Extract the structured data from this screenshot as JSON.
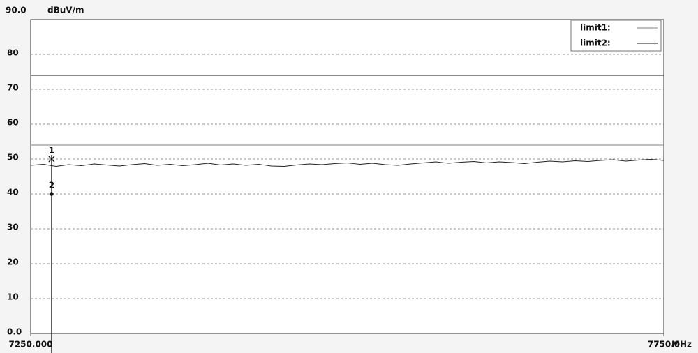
{
  "chart_data": {
    "type": "line",
    "y_unit": "dBuV/m",
    "x_unit": "MHz",
    "ylim": [
      0,
      90
    ],
    "yticks": [
      {
        "value": 0,
        "label": "0.0"
      },
      10,
      20,
      30,
      40,
      50,
      60,
      70,
      80,
      {
        "value": 90,
        "label": "90.0"
      }
    ],
    "xlim": [
      7250,
      7750
    ],
    "xticks": [
      {
        "value": 7250,
        "label": "7250.000"
      },
      {
        "value": 7750,
        "label": "7750.0"
      }
    ],
    "grid": true,
    "trace": {
      "color": "#222222",
      "x": [
        7250,
        7260,
        7270,
        7280,
        7290,
        7300,
        7310,
        7320,
        7330,
        7340,
        7350,
        7360,
        7370,
        7380,
        7390,
        7400,
        7410,
        7420,
        7430,
        7440,
        7450,
        7460,
        7470,
        7480,
        7490,
        7500,
        7510,
        7520,
        7530,
        7540,
        7550,
        7560,
        7570,
        7580,
        7590,
        7600,
        7610,
        7620,
        7630,
        7640,
        7650,
        7660,
        7670,
        7680,
        7690,
        7700,
        7710,
        7720,
        7730,
        7740,
        7750
      ],
      "values": [
        48.2,
        48.5,
        47.9,
        48.4,
        48.1,
        48.6,
        48.3,
        48.0,
        48.4,
        48.7,
        48.2,
        48.5,
        48.1,
        48.4,
        48.8,
        48.3,
        48.6,
        48.2,
        48.5,
        48.0,
        47.9,
        48.3,
        48.6,
        48.4,
        48.7,
        48.9,
        48.5,
        48.8,
        48.4,
        48.2,
        48.6,
        48.9,
        49.2,
        48.8,
        49.1,
        49.3,
        48.9,
        49.2,
        49.0,
        48.7,
        49.1,
        49.4,
        49.2,
        49.5,
        49.3,
        49.6,
        49.8,
        49.4,
        49.7,
        49.9,
        49.6
      ]
    },
    "series": [
      {
        "name": "limit1:",
        "color": "#999999",
        "x": [
          7250,
          7750
        ],
        "values": [
          54,
          54
        ]
      },
      {
        "name": "limit2:",
        "color": "#444444",
        "x": [
          7250,
          7750
        ],
        "values": [
          74,
          74
        ]
      }
    ],
    "markers": [
      {
        "label": "1",
        "x": 7266.5,
        "value": 50,
        "symbol": "cross"
      },
      {
        "label": "2",
        "x": 7266.5,
        "value": 40,
        "symbol": "dot"
      }
    ]
  }
}
